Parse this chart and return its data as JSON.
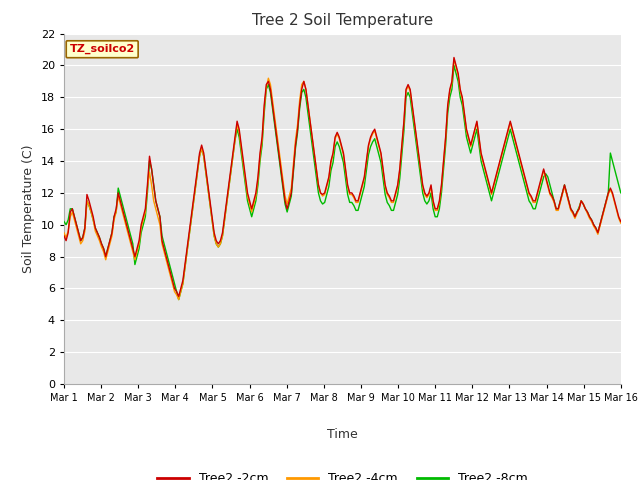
{
  "title": "Tree 2 Soil Temperature",
  "xlabel": "Time",
  "ylabel": "Soil Temperature (C)",
  "ylim": [
    0,
    22
  ],
  "yticks": [
    0,
    2,
    4,
    6,
    8,
    10,
    12,
    14,
    16,
    18,
    20,
    22
  ],
  "xtick_labels": [
    "Mar 1",
    "Mar 2",
    "Mar 3",
    "Mar 4",
    "Mar 5",
    "Mar 6",
    "Mar 7",
    "Mar 8",
    "Mar 9",
    "Mar 10",
    "Mar 11",
    "Mar 12",
    "Mar 13",
    "Mar 14",
    "Mar 15",
    "Mar 16"
  ],
  "colors": {
    "line_2cm": "#cc0000",
    "line_4cm": "#ff9900",
    "line_8cm": "#00bb00",
    "background": "#e8e8e8",
    "grid": "#ffffff"
  },
  "legend_entries": [
    "Tree2 -2cm",
    "Tree2 -4cm",
    "Tree2 -8cm"
  ],
  "annotation_box": "TZ_soilco2",
  "annotation_color": "#cc0000",
  "annotation_bg": "#ffffcc",
  "line_width": 1.0,
  "tree2_2cm": [
    9.3,
    9.0,
    9.5,
    10.8,
    11.0,
    10.5,
    10.0,
    9.5,
    9.0,
    9.2,
    9.8,
    11.9,
    11.5,
    11.0,
    10.5,
    9.8,
    9.5,
    9.2,
    8.8,
    8.5,
    8.0,
    8.5,
    9.0,
    9.5,
    10.5,
    11.0,
    12.0,
    11.5,
    11.0,
    10.5,
    10.0,
    9.5,
    9.0,
    8.5,
    8.0,
    8.5,
    9.0,
    10.0,
    10.5,
    11.0,
    12.5,
    14.3,
    13.5,
    12.5,
    11.5,
    11.0,
    10.5,
    9.0,
    8.5,
    8.0,
    7.5,
    7.0,
    6.5,
    6.0,
    5.8,
    5.5,
    6.0,
    6.5,
    7.5,
    8.5,
    9.5,
    10.5,
    11.5,
    12.5,
    13.5,
    14.5,
    15.0,
    14.5,
    13.5,
    12.5,
    11.5,
    10.5,
    9.5,
    9.0,
    8.8,
    9.0,
    9.5,
    10.5,
    11.5,
    12.5,
    13.5,
    14.5,
    15.5,
    16.5,
    16.0,
    15.0,
    14.0,
    13.0,
    12.0,
    11.5,
    11.0,
    11.5,
    12.0,
    13.0,
    14.5,
    15.5,
    17.5,
    18.8,
    19.0,
    18.5,
    17.5,
    16.5,
    15.5,
    14.5,
    13.5,
    12.5,
    11.5,
    11.0,
    11.5,
    12.0,
    13.5,
    15.0,
    16.0,
    17.5,
    18.5,
    19.0,
    18.5,
    17.5,
    16.5,
    15.5,
    14.5,
    13.5,
    12.5,
    12.0,
    11.9,
    12.0,
    12.5,
    13.0,
    14.0,
    14.5,
    15.5,
    15.8,
    15.5,
    15.0,
    14.5,
    13.5,
    12.5,
    12.0,
    12.0,
    11.8,
    11.5,
    11.5,
    12.0,
    12.5,
    13.0,
    14.0,
    15.0,
    15.5,
    15.8,
    16.0,
    15.5,
    15.0,
    14.5,
    13.5,
    12.5,
    12.0,
    11.8,
    11.5,
    11.5,
    12.0,
    12.5,
    13.5,
    15.0,
    16.5,
    18.5,
    18.8,
    18.5,
    17.5,
    16.5,
    15.5,
    14.5,
    13.5,
    12.5,
    12.0,
    11.8,
    12.0,
    12.5,
    11.5,
    11.0,
    11.0,
    11.5,
    12.5,
    14.0,
    15.5,
    17.5,
    18.5,
    19.0,
    20.5,
    20.0,
    19.5,
    18.5,
    18.0,
    17.0,
    16.0,
    15.5,
    15.0,
    15.5,
    16.0,
    16.5,
    15.5,
    14.5,
    14.0,
    13.5,
    13.0,
    12.5,
    12.0,
    12.5,
    13.0,
    13.5,
    14.0,
    14.5,
    15.0,
    15.5,
    16.0,
    16.5,
    16.0,
    15.5,
    15.0,
    14.5,
    14.0,
    13.5,
    13.0,
    12.5,
    12.0,
    11.8,
    11.5,
    11.5,
    12.0,
    12.5,
    13.0,
    13.5,
    13.0,
    12.5,
    12.0,
    11.8,
    11.5,
    11.0,
    11.0,
    11.5,
    12.0,
    12.5,
    12.0,
    11.5,
    11.0,
    10.8,
    10.5,
    10.8,
    11.0,
    11.5,
    11.3,
    11.0,
    10.8,
    10.5,
    10.3,
    10.0,
    9.8,
    9.5,
    10.0,
    10.5,
    11.0,
    11.5,
    12.0,
    12.3,
    12.0,
    11.5,
    11.0,
    10.5,
    10.2
  ],
  "tree2_4cm": [
    9.5,
    9.2,
    9.6,
    10.5,
    10.8,
    10.3,
    9.8,
    9.3,
    8.8,
    9.0,
    9.6,
    11.5,
    11.2,
    10.8,
    10.3,
    9.6,
    9.3,
    9.0,
    8.6,
    8.3,
    7.8,
    8.3,
    8.8,
    9.3,
    10.3,
    10.8,
    11.8,
    11.3,
    10.8,
    10.3,
    9.8,
    9.3,
    8.8,
    8.3,
    7.8,
    8.3,
    8.8,
    9.8,
    10.3,
    10.8,
    12.3,
    13.3,
    12.5,
    11.5,
    11.0,
    10.5,
    10.0,
    8.8,
    8.3,
    7.8,
    7.3,
    6.8,
    6.3,
    5.8,
    5.6,
    5.3,
    5.8,
    6.3,
    7.3,
    8.3,
    9.3,
    10.3,
    11.3,
    12.3,
    13.3,
    14.3,
    14.8,
    14.3,
    13.3,
    12.3,
    11.3,
    10.3,
    9.3,
    8.8,
    8.6,
    8.8,
    9.3,
    10.3,
    11.3,
    12.3,
    13.3,
    14.3,
    15.3,
    16.3,
    15.8,
    14.8,
    13.8,
    12.8,
    11.8,
    11.3,
    10.8,
    11.3,
    11.8,
    12.8,
    14.3,
    15.3,
    17.3,
    18.6,
    19.2,
    18.8,
    17.8,
    16.8,
    15.8,
    14.8,
    13.8,
    12.8,
    11.8,
    11.3,
    11.8,
    12.3,
    13.8,
    15.3,
    16.3,
    17.8,
    18.8,
    19.0,
    18.5,
    17.5,
    16.5,
    15.5,
    14.5,
    13.5,
    12.5,
    12.0,
    11.8,
    11.9,
    12.4,
    12.9,
    13.9,
    14.4,
    15.4,
    15.7,
    15.4,
    14.9,
    14.4,
    13.4,
    12.4,
    11.9,
    11.9,
    11.7,
    11.4,
    11.4,
    11.9,
    12.4,
    12.9,
    13.9,
    14.9,
    15.4,
    15.7,
    15.9,
    15.4,
    14.9,
    14.4,
    13.4,
    12.4,
    11.9,
    11.7,
    11.4,
    11.4,
    11.9,
    12.4,
    13.4,
    14.9,
    16.4,
    18.4,
    18.7,
    18.4,
    17.4,
    16.4,
    15.4,
    14.4,
    13.4,
    12.4,
    11.9,
    11.7,
    11.9,
    12.4,
    11.4,
    10.9,
    10.9,
    11.4,
    12.4,
    13.9,
    15.4,
    17.4,
    18.4,
    18.9,
    20.4,
    19.9,
    19.4,
    18.4,
    17.9,
    16.9,
    15.9,
    15.4,
    14.9,
    15.4,
    15.9,
    16.4,
    15.4,
    14.4,
    13.9,
    13.4,
    12.9,
    12.4,
    11.9,
    12.4,
    12.9,
    13.4,
    13.9,
    14.4,
    14.9,
    15.4,
    15.9,
    16.4,
    15.9,
    15.4,
    14.9,
    14.4,
    13.9,
    13.4,
    12.9,
    12.4,
    11.9,
    11.7,
    11.4,
    11.4,
    11.9,
    12.4,
    12.9,
    13.4,
    12.9,
    12.4,
    11.9,
    11.7,
    11.4,
    10.9,
    10.9,
    11.4,
    11.9,
    12.4,
    11.9,
    11.4,
    10.9,
    10.7,
    10.4,
    10.7,
    11.0,
    11.5,
    11.3,
    11.0,
    10.7,
    10.4,
    10.2,
    9.9,
    9.7,
    9.4,
    9.9,
    10.4,
    10.9,
    11.4,
    11.9,
    12.2,
    11.9,
    11.4,
    10.9,
    10.4,
    10.1
  ],
  "tree2_8cm": [
    10.2,
    10.0,
    10.3,
    11.0,
    11.0,
    10.5,
    10.0,
    9.5,
    9.0,
    9.2,
    9.8,
    11.5,
    11.2,
    10.8,
    10.3,
    9.8,
    9.5,
    9.2,
    8.8,
    8.5,
    8.0,
    8.5,
    9.0,
    9.5,
    10.5,
    10.8,
    12.3,
    11.8,
    11.3,
    10.8,
    10.3,
    9.8,
    9.3,
    8.8,
    7.5,
    8.0,
    8.5,
    9.5,
    10.0,
    10.5,
    12.0,
    14.0,
    13.5,
    12.5,
    11.5,
    11.0,
    10.5,
    9.3,
    8.8,
    8.3,
    7.8,
    7.3,
    6.8,
    6.3,
    5.8,
    5.3,
    5.8,
    6.3,
    7.3,
    8.3,
    9.3,
    10.3,
    11.3,
    12.3,
    13.3,
    14.3,
    14.8,
    14.3,
    13.3,
    12.3,
    11.3,
    10.3,
    9.3,
    8.8,
    8.6,
    8.8,
    9.3,
    10.3,
    11.3,
    12.3,
    13.3,
    14.3,
    15.3,
    16.0,
    15.5,
    14.5,
    13.5,
    12.5,
    11.5,
    11.0,
    10.5,
    11.0,
    11.5,
    12.5,
    14.0,
    15.0,
    17.0,
    18.5,
    18.8,
    18.3,
    17.3,
    16.3,
    15.3,
    14.3,
    13.3,
    12.3,
    11.3,
    10.8,
    11.3,
    11.8,
    13.3,
    14.8,
    15.8,
    17.3,
    18.3,
    18.5,
    18.0,
    17.0,
    16.0,
    15.0,
    14.0,
    13.0,
    12.0,
    11.5,
    11.3,
    11.4,
    11.9,
    12.4,
    13.4,
    13.9,
    14.9,
    15.2,
    14.9,
    14.4,
    13.9,
    12.9,
    11.9,
    11.4,
    11.4,
    11.2,
    10.9,
    10.9,
    11.4,
    11.9,
    12.4,
    13.4,
    14.4,
    14.9,
    15.2,
    15.4,
    14.9,
    14.4,
    13.9,
    12.9,
    11.9,
    11.4,
    11.2,
    10.9,
    10.9,
    11.4,
    11.9,
    12.9,
    14.4,
    15.9,
    18.0,
    18.3,
    18.0,
    17.0,
    16.0,
    15.0,
    14.0,
    13.0,
    12.0,
    11.5,
    11.3,
    11.5,
    12.0,
    11.0,
    10.5,
    10.5,
    11.0,
    12.0,
    13.5,
    15.0,
    17.0,
    18.0,
    18.5,
    20.0,
    19.5,
    19.0,
    18.0,
    17.5,
    16.5,
    15.5,
    15.0,
    14.5,
    15.0,
    15.5,
    16.0,
    15.0,
    14.0,
    13.5,
    13.0,
    12.5,
    12.0,
    11.5,
    12.0,
    12.5,
    13.0,
    13.5,
    14.0,
    14.5,
    15.0,
    15.5,
    16.0,
    15.5,
    15.0,
    14.5,
    14.0,
    13.5,
    13.0,
    12.5,
    12.0,
    11.5,
    11.3,
    11.0,
    11.0,
    11.5,
    12.0,
    12.5,
    13.0,
    13.2,
    13.0,
    12.5,
    12.0,
    11.5,
    11.0,
    11.0,
    11.5,
    12.0,
    12.5,
    12.0,
    11.5,
    11.0,
    10.8,
    10.5,
    10.8,
    11.1,
    11.5,
    11.3,
    11.0,
    10.8,
    10.5,
    10.3,
    10.0,
    9.8,
    9.5,
    10.0,
    10.5,
    11.0,
    11.5,
    12.0,
    14.5,
    14.0,
    13.5,
    13.0,
    12.5,
    12.0
  ]
}
